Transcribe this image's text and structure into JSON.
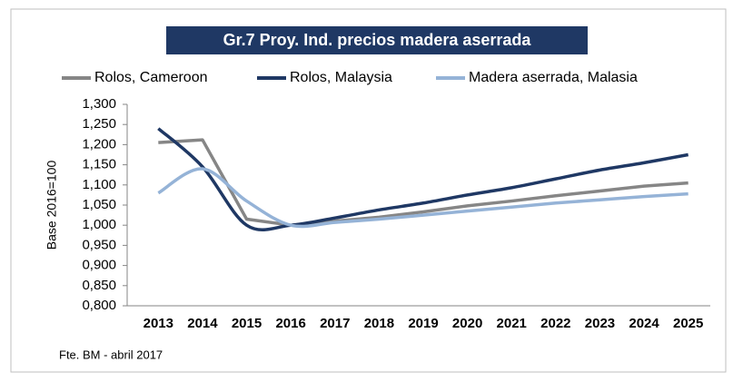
{
  "chart_data": {
    "type": "line",
    "title": "Gr.7  Proy. Ind. precios madera  aserrada",
    "y_label": "Base 2016=100",
    "source": "Fte. BM - abril 2017",
    "categories": [
      "2013",
      "2014",
      "2015",
      "2016",
      "2017",
      "2018",
      "2019",
      "2020",
      "2021",
      "2022",
      "2023",
      "2024",
      "2025"
    ],
    "series": [
      {
        "name": "Rolos, Cameroon",
        "color": "#868686",
        "smooth": false,
        "values": [
          1205,
          1212,
          1015,
          1000,
          1010,
          1020,
          1033,
          1048,
          1060,
          1073,
          1085,
          1097,
          1105
        ]
      },
      {
        "name": "Rolos, Malaysia",
        "color": "#1f3864",
        "smooth": true,
        "values": [
          1240,
          1145,
          1000,
          1000,
          1018,
          1038,
          1055,
          1075,
          1093,
          1115,
          1137,
          1155,
          1175
        ]
      },
      {
        "name": "Madera aserrada, Malasia",
        "color": "#95b3d7",
        "smooth": true,
        "values": [
          1080,
          1140,
          1060,
          1000,
          1007,
          1015,
          1025,
          1035,
          1045,
          1055,
          1063,
          1071,
          1078
        ]
      }
    ],
    "ylim": [
      800,
      1300
    ],
    "yticks": [
      {
        "value": 800,
        "label": "0,800"
      },
      {
        "value": 850,
        "label": "0,850"
      },
      {
        "value": 900,
        "label": "0,900"
      },
      {
        "value": 950,
        "label": "0,950"
      },
      {
        "value": 1000,
        "label": "1,000"
      },
      {
        "value": 1050,
        "label": "1,050"
      },
      {
        "value": 1100,
        "label": "1,100"
      },
      {
        "value": 1150,
        "label": "1,150"
      },
      {
        "value": 1200,
        "label": "1,200"
      },
      {
        "value": 1250,
        "label": "1,250"
      },
      {
        "value": 1300,
        "label": "1,300"
      }
    ],
    "grid": false
  }
}
